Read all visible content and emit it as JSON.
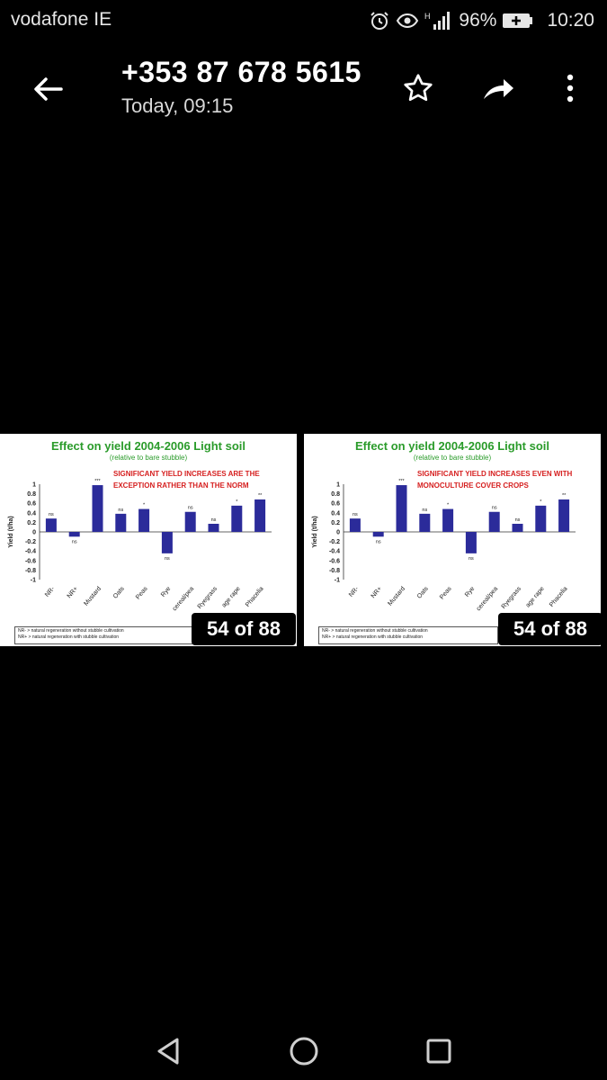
{
  "status_bar": {
    "carrier": "vodafone IE",
    "battery_percent": "96%",
    "time": "10:20",
    "icons": [
      "alarm-icon",
      "eye-icon",
      "signal-icon",
      "battery-icon"
    ]
  },
  "header": {
    "contact_number": "+353 87 678 5615",
    "timestamp": "Today, 09:15",
    "actions": [
      "back-arrow-icon",
      "star-icon",
      "share-icon",
      "more-vert-icon"
    ]
  },
  "slides": [
    {
      "title": "Effect on yield 2004-2006  Light soil",
      "subtitle": "(relative to bare stubble)",
      "note_line1": "SIGNIFICANT YIELD INCREASES ARE THE",
      "note_line2": "EXCEPTION RATHER THAN THE NORM",
      "legend_line1": "NR- > natural regeneration without stubble cultivation",
      "legend_line2": "NR+ > natural regeneration with stubble cultivation",
      "counter": "54 of 88"
    },
    {
      "title": "Effect on yield 2004-2006  Light soil",
      "subtitle": "(relative to bare stubble)",
      "note_line1": "SIGNIFICANT YIELD INCREASES EVEN WITH",
      "note_line2": "MONOCULTURE COVER CROPS",
      "legend_line1": "NR- > natural regeneration without stubble cultivation",
      "legend_line2": "NR+ > natural regeneration with stubble cultivation",
      "counter": "54 of 88"
    }
  ],
  "chart_data": [
    {
      "type": "bar",
      "ylabel": "Yield (t/ha)",
      "ylim": [
        -1,
        1
      ],
      "yticks": [
        "1",
        "0.8",
        "0.6",
        "0.4",
        "0.2",
        "0",
        "-0.2",
        "-0.4",
        "-0.6",
        "-0.8",
        "-1"
      ],
      "categories": [
        "NR-",
        "NR+",
        "Mustard",
        "Oats",
        "Peas",
        "Rye",
        "cereal/pea",
        "Ryegrass",
        "age rape",
        "Phacelia"
      ],
      "values": [
        0.28,
        -0.1,
        0.98,
        0.38,
        0.48,
        -0.45,
        0.42,
        0.17,
        0.55,
        0.68
      ],
      "significance": [
        "ns",
        "ns",
        "***",
        "ns",
        "*",
        "ns",
        "ns",
        "ns",
        "*",
        "**"
      ],
      "bar_color": "#2b2b9a",
      "grid": false
    },
    {
      "type": "bar",
      "ylabel": "Yield (t/ha)",
      "ylim": [
        -1,
        1
      ],
      "yticks": [
        "1",
        "0.8",
        "0.6",
        "0.4",
        "0.2",
        "0",
        "-0.2",
        "-0.4",
        "-0.6",
        "-0.8",
        "-1"
      ],
      "categories": [
        "NR-",
        "NR+",
        "Mustard",
        "Oats",
        "Peas",
        "Rye",
        "cereal/pea",
        "Ryegrass",
        "age rape",
        "Phacelia"
      ],
      "values": [
        0.28,
        -0.1,
        0.98,
        0.38,
        0.48,
        -0.45,
        0.42,
        0.17,
        0.55,
        0.68
      ],
      "significance": [
        "ns",
        "ns",
        "***",
        "ns",
        "*",
        "ns",
        "ns",
        "ns",
        "*",
        "**"
      ],
      "bar_color": "#2b2b9a",
      "grid": false
    }
  ],
  "nav_bar": {
    "icons": [
      "nav-back-icon",
      "nav-home-icon",
      "nav-recents-icon"
    ]
  }
}
